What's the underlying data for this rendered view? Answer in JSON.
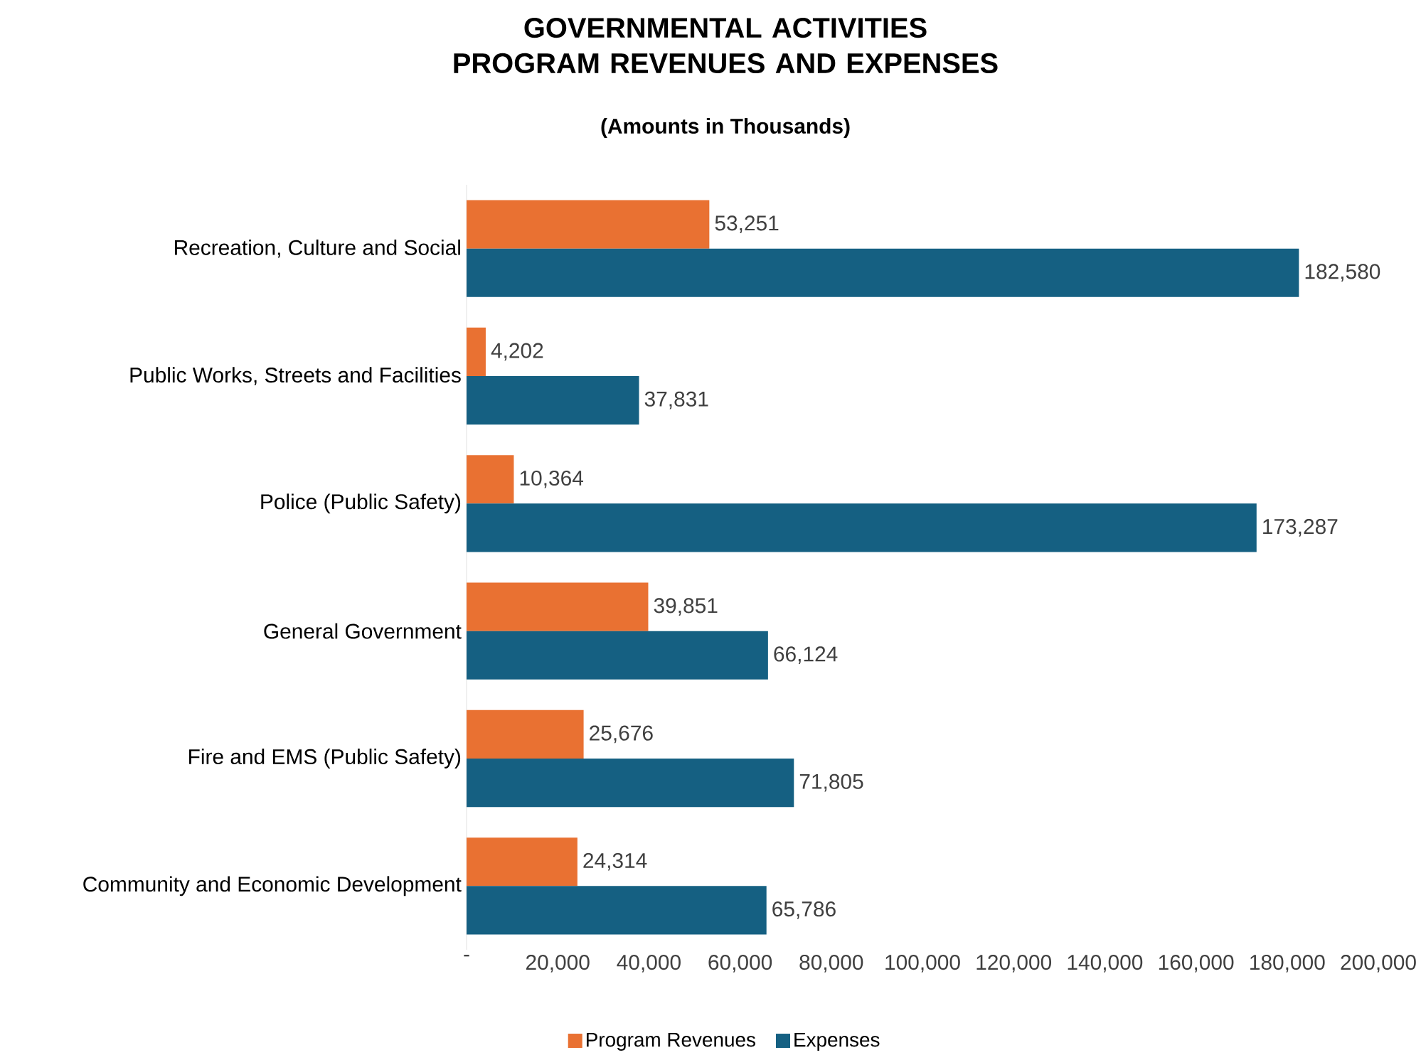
{
  "chart_data": {
    "type": "bar",
    "orientation": "horizontal",
    "title": "GOVERNMENTAL ACTIVITIES PROGRAM REVENUES AND EXPENSES",
    "subtitle": "(Amounts in Thousands)",
    "categories": [
      "Recreation, Culture and Social",
      "Public Works, Streets and Facilities",
      "Police (Public Safety)",
      "General Government",
      "Fire and EMS (Public Safety)",
      "Community and Economic Development"
    ],
    "series": [
      {
        "name": "Program Revenues",
        "color": "#e97132",
        "values": [
          53251,
          4202,
          10364,
          39851,
          25676,
          24314
        ],
        "value_labels": [
          "53,251",
          "4,202",
          "10,364",
          "39,851",
          "25,676",
          "24,314"
        ]
      },
      {
        "name": "Expenses",
        "color": "#156082",
        "values": [
          182580,
          37831,
          173287,
          66124,
          71805,
          65786
        ],
        "value_labels": [
          "182,580",
          "37,831",
          "173,287",
          "66,124",
          "71,805",
          "65,786"
        ]
      }
    ],
    "xlim": [
      0,
      200000
    ],
    "xticks": [
      {
        "value": 0,
        "label": "-"
      },
      {
        "value": 20000,
        "label": "20,000"
      },
      {
        "value": 40000,
        "label": "40,000"
      },
      {
        "value": 60000,
        "label": "60,000"
      },
      {
        "value": 80000,
        "label": "80,000"
      },
      {
        "value": 100000,
        "label": "100,000"
      },
      {
        "value": 120000,
        "label": "120,000"
      },
      {
        "value": 140000,
        "label": "140,000"
      },
      {
        "value": 160000,
        "label": "160,000"
      },
      {
        "value": 180000,
        "label": "180,000"
      },
      {
        "value": 200000,
        "label": "200,000"
      }
    ],
    "grid": false,
    "legend": "bottom"
  }
}
